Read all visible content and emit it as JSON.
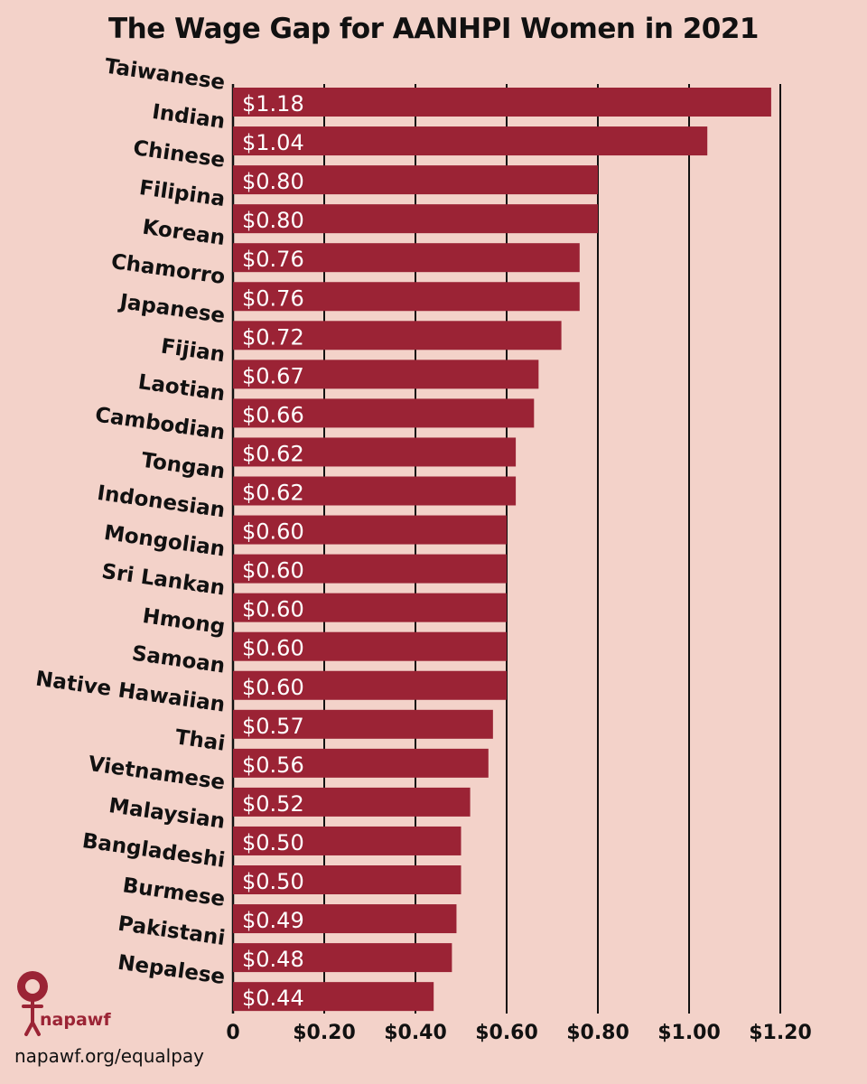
{
  "chart_data": {
    "type": "bar",
    "orientation": "horizontal",
    "title": "The Wage Gap for AANHPI Women in 2021",
    "xlabel": "",
    "ylabel": "",
    "xlim": [
      0,
      1.2
    ],
    "grid": true,
    "bar_color": "#9b2335",
    "categories": [
      "Taiwanese",
      "Indian",
      "Chinese",
      "Filipina",
      "Korean",
      "Chamorro",
      "Japanese",
      "Fijian",
      "Laotian",
      "Cambodian",
      "Tongan",
      "Indonesian",
      "Mongolian",
      "Sri Lankan",
      "Hmong",
      "Samoan",
      "Native Hawaiian",
      "Thai",
      "Vietnamese",
      "Malaysian",
      "Bangladeshi",
      "Burmese",
      "Pakistani",
      "Nepalese"
    ],
    "values": [
      1.18,
      1.04,
      0.8,
      0.8,
      0.76,
      0.76,
      0.72,
      0.67,
      0.66,
      0.62,
      0.62,
      0.6,
      0.6,
      0.6,
      0.6,
      0.6,
      0.57,
      0.56,
      0.52,
      0.5,
      0.5,
      0.49,
      0.48,
      0.44
    ],
    "data_labels": [
      "$1.18",
      "$1.04",
      "$0.80",
      "$0.80",
      "$0.76",
      "$0.76",
      "$0.72",
      "$0.67",
      "$0.66",
      "$0.62",
      "$0.62",
      "$0.60",
      "$0.60",
      "$0.60",
      "$0.60",
      "$0.60",
      "$0.57",
      "$0.56",
      "$0.52",
      "$0.50",
      "$0.50",
      "$0.49",
      "$0.48",
      "$0.44"
    ],
    "ticks": [
      0,
      0.2,
      0.4,
      0.6,
      0.8,
      1.0,
      1.2
    ],
    "tick_labels": [
      "0",
      "$0.20",
      "$0.40",
      "$0.60",
      "$0.80",
      "$1.00",
      "$1.20"
    ]
  },
  "footer": {
    "logo_text": "napawf",
    "url": "napawf.org/equalpay"
  }
}
